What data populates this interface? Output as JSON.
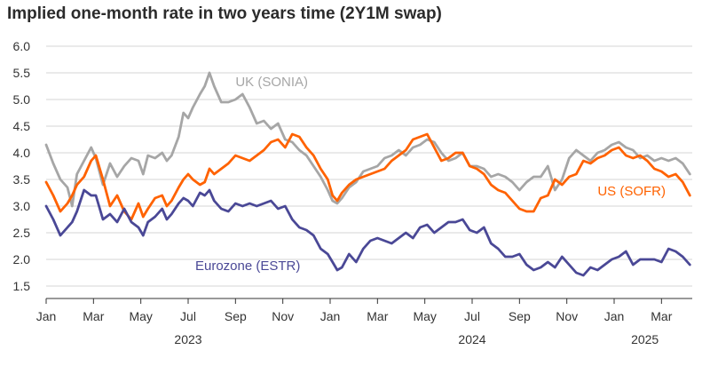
{
  "colors": {
    "uk": "#a6a6a6",
    "us": "#ff6200",
    "eu": "#4a4896",
    "grid": "#d6d6d6",
    "axis": "#333333",
    "text": "#2b2b2b"
  },
  "chart_data": {
    "type": "line",
    "title": "Implied one-month rate in two years time (2Y1M swap)",
    "xlabel": "",
    "ylabel": "",
    "ylim": [
      1.5,
      6.0
    ],
    "y_ticks": [
      "6.0",
      "5.5",
      "5.0",
      "4.5",
      "4.0",
      "3.5",
      "3.0",
      "2.5",
      "2.0",
      "1.5"
    ],
    "x_tick_labels": [
      "Jan",
      "Mar",
      "May",
      "Jul",
      "Sep",
      "Nov",
      "Jan",
      "Mar",
      "May",
      "Jul",
      "Sep",
      "Nov",
      "Jan",
      "Mar"
    ],
    "x_tick_months": [
      0,
      2,
      4,
      6,
      8,
      10,
      12,
      14,
      16,
      18,
      20,
      22,
      24,
      26
    ],
    "year_labels": [
      {
        "label": "2023",
        "month": 6
      },
      {
        "label": "2024",
        "month": 18
      },
      {
        "label": "2025",
        "month": 25.3
      }
    ],
    "x_range_months": [
      0,
      27.3
    ],
    "grid": "horizontal",
    "series": [
      {
        "name": "UK (SONIA)",
        "key": "uk",
        "label_at": {
          "month": 8.0,
          "value": 5.25
        },
        "points": [
          [
            0,
            4.15
          ],
          [
            0.3,
            3.8
          ],
          [
            0.6,
            3.5
          ],
          [
            0.9,
            3.35
          ],
          [
            1.1,
            3.0
          ],
          [
            1.3,
            3.6
          ],
          [
            1.6,
            3.85
          ],
          [
            1.9,
            4.1
          ],
          [
            2.1,
            3.9
          ],
          [
            2.4,
            3.4
          ],
          [
            2.7,
            3.8
          ],
          [
            3.0,
            3.55
          ],
          [
            3.3,
            3.75
          ],
          [
            3.6,
            3.9
          ],
          [
            3.9,
            3.85
          ],
          [
            4.1,
            3.6
          ],
          [
            4.3,
            3.95
          ],
          [
            4.6,
            3.9
          ],
          [
            4.9,
            4.0
          ],
          [
            5.1,
            3.85
          ],
          [
            5.3,
            3.95
          ],
          [
            5.6,
            4.3
          ],
          [
            5.8,
            4.75
          ],
          [
            6.0,
            4.65
          ],
          [
            6.2,
            4.85
          ],
          [
            6.5,
            5.1
          ],
          [
            6.7,
            5.25
          ],
          [
            6.9,
            5.5
          ],
          [
            7.1,
            5.25
          ],
          [
            7.4,
            4.95
          ],
          [
            7.7,
            4.95
          ],
          [
            8.0,
            5.0
          ],
          [
            8.3,
            5.1
          ],
          [
            8.6,
            4.85
          ],
          [
            8.9,
            4.55
          ],
          [
            9.2,
            4.6
          ],
          [
            9.5,
            4.45
          ],
          [
            9.8,
            4.55
          ],
          [
            10.1,
            4.25
          ],
          [
            10.4,
            4.2
          ],
          [
            10.7,
            4.05
          ],
          [
            11.0,
            3.95
          ],
          [
            11.3,
            3.75
          ],
          [
            11.6,
            3.55
          ],
          [
            11.9,
            3.3
          ],
          [
            12.1,
            3.1
          ],
          [
            12.3,
            3.05
          ],
          [
            12.5,
            3.15
          ],
          [
            12.8,
            3.35
          ],
          [
            13.1,
            3.45
          ],
          [
            13.4,
            3.65
          ],
          [
            13.7,
            3.7
          ],
          [
            14.0,
            3.75
          ],
          [
            14.3,
            3.9
          ],
          [
            14.6,
            3.95
          ],
          [
            14.9,
            4.05
          ],
          [
            15.2,
            3.95
          ],
          [
            15.5,
            4.1
          ],
          [
            15.8,
            4.15
          ],
          [
            16.1,
            4.25
          ],
          [
            16.4,
            4.2
          ],
          [
            16.7,
            4.0
          ],
          [
            17.0,
            3.85
          ],
          [
            17.3,
            3.9
          ],
          [
            17.6,
            4.0
          ],
          [
            17.9,
            3.75
          ],
          [
            18.2,
            3.75
          ],
          [
            18.5,
            3.7
          ],
          [
            18.8,
            3.55
          ],
          [
            19.1,
            3.6
          ],
          [
            19.4,
            3.55
          ],
          [
            19.7,
            3.45
          ],
          [
            20.0,
            3.3
          ],
          [
            20.3,
            3.45
          ],
          [
            20.6,
            3.55
          ],
          [
            20.9,
            3.55
          ],
          [
            21.2,
            3.75
          ],
          [
            21.5,
            3.3
          ],
          [
            21.8,
            3.5
          ],
          [
            22.1,
            3.9
          ],
          [
            22.4,
            4.05
          ],
          [
            22.7,
            3.95
          ],
          [
            23.0,
            3.85
          ],
          [
            23.3,
            4.0
          ],
          [
            23.6,
            4.05
          ],
          [
            23.9,
            4.15
          ],
          [
            24.2,
            4.2
          ],
          [
            24.5,
            4.1
          ],
          [
            24.8,
            4.05
          ],
          [
            25.1,
            3.9
          ],
          [
            25.4,
            3.95
          ],
          [
            25.7,
            3.85
          ],
          [
            26.0,
            3.9
          ],
          [
            26.3,
            3.85
          ],
          [
            26.6,
            3.9
          ],
          [
            26.9,
            3.8
          ],
          [
            27.2,
            3.6
          ]
        ]
      },
      {
        "name": "US (SOFR)",
        "key": "us",
        "label_at": {
          "month": 23.3,
          "value": 3.2
        },
        "points": [
          [
            0,
            3.45
          ],
          [
            0.3,
            3.2
          ],
          [
            0.6,
            2.9
          ],
          [
            0.9,
            3.05
          ],
          [
            1.1,
            3.2
          ],
          [
            1.3,
            3.4
          ],
          [
            1.6,
            3.55
          ],
          [
            1.9,
            3.85
          ],
          [
            2.1,
            3.95
          ],
          [
            2.4,
            3.5
          ],
          [
            2.7,
            3.0
          ],
          [
            3.0,
            3.2
          ],
          [
            3.3,
            2.9
          ],
          [
            3.6,
            2.75
          ],
          [
            3.9,
            3.05
          ],
          [
            4.1,
            2.8
          ],
          [
            4.3,
            2.95
          ],
          [
            4.6,
            3.15
          ],
          [
            4.9,
            3.2
          ],
          [
            5.1,
            3.0
          ],
          [
            5.3,
            3.1
          ],
          [
            5.6,
            3.35
          ],
          [
            5.8,
            3.5
          ],
          [
            6.0,
            3.6
          ],
          [
            6.2,
            3.5
          ],
          [
            6.5,
            3.4
          ],
          [
            6.7,
            3.45
          ],
          [
            6.9,
            3.7
          ],
          [
            7.1,
            3.6
          ],
          [
            7.4,
            3.7
          ],
          [
            7.7,
            3.8
          ],
          [
            8.0,
            3.95
          ],
          [
            8.3,
            3.9
          ],
          [
            8.6,
            3.85
          ],
          [
            8.9,
            3.95
          ],
          [
            9.2,
            4.05
          ],
          [
            9.5,
            4.2
          ],
          [
            9.8,
            4.25
          ],
          [
            10.1,
            4.1
          ],
          [
            10.4,
            4.35
          ],
          [
            10.7,
            4.3
          ],
          [
            11.0,
            4.1
          ],
          [
            11.3,
            3.95
          ],
          [
            11.6,
            3.7
          ],
          [
            11.9,
            3.5
          ],
          [
            12.1,
            3.2
          ],
          [
            12.3,
            3.1
          ],
          [
            12.5,
            3.25
          ],
          [
            12.8,
            3.4
          ],
          [
            13.1,
            3.5
          ],
          [
            13.4,
            3.55
          ],
          [
            13.7,
            3.6
          ],
          [
            14.0,
            3.65
          ],
          [
            14.3,
            3.7
          ],
          [
            14.6,
            3.85
          ],
          [
            14.9,
            3.95
          ],
          [
            15.2,
            4.05
          ],
          [
            15.5,
            4.25
          ],
          [
            15.8,
            4.3
          ],
          [
            16.1,
            4.35
          ],
          [
            16.4,
            4.1
          ],
          [
            16.7,
            3.85
          ],
          [
            17.0,
            3.9
          ],
          [
            17.3,
            4.0
          ],
          [
            17.6,
            4.0
          ],
          [
            17.9,
            3.75
          ],
          [
            18.2,
            3.7
          ],
          [
            18.5,
            3.6
          ],
          [
            18.8,
            3.4
          ],
          [
            19.1,
            3.3
          ],
          [
            19.4,
            3.25
          ],
          [
            19.7,
            3.1
          ],
          [
            20.0,
            2.95
          ],
          [
            20.3,
            2.9
          ],
          [
            20.6,
            2.9
          ],
          [
            20.9,
            3.15
          ],
          [
            21.2,
            3.2
          ],
          [
            21.5,
            3.5
          ],
          [
            21.8,
            3.4
          ],
          [
            22.1,
            3.55
          ],
          [
            22.4,
            3.6
          ],
          [
            22.7,
            3.85
          ],
          [
            23.0,
            3.8
          ],
          [
            23.3,
            3.9
          ],
          [
            23.6,
            3.95
          ],
          [
            23.9,
            4.05
          ],
          [
            24.2,
            4.1
          ],
          [
            24.5,
            3.95
          ],
          [
            24.8,
            3.9
          ],
          [
            25.1,
            3.95
          ],
          [
            25.4,
            3.85
          ],
          [
            25.7,
            3.7
          ],
          [
            26.0,
            3.65
          ],
          [
            26.3,
            3.55
          ],
          [
            26.6,
            3.6
          ],
          [
            26.9,
            3.45
          ],
          [
            27.2,
            3.2
          ]
        ]
      },
      {
        "name": "Eurozone (ESTR)",
        "key": "eu",
        "label_at": {
          "month": 6.3,
          "value": 1.8
        },
        "points": [
          [
            0,
            3.0
          ],
          [
            0.3,
            2.75
          ],
          [
            0.6,
            2.45
          ],
          [
            0.9,
            2.6
          ],
          [
            1.1,
            2.7
          ],
          [
            1.3,
            2.9
          ],
          [
            1.6,
            3.3
          ],
          [
            1.9,
            3.2
          ],
          [
            2.1,
            3.2
          ],
          [
            2.4,
            2.75
          ],
          [
            2.7,
            2.85
          ],
          [
            3.0,
            2.7
          ],
          [
            3.3,
            2.95
          ],
          [
            3.6,
            2.7
          ],
          [
            3.9,
            2.6
          ],
          [
            4.1,
            2.45
          ],
          [
            4.3,
            2.7
          ],
          [
            4.6,
            2.8
          ],
          [
            4.9,
            2.95
          ],
          [
            5.1,
            2.75
          ],
          [
            5.3,
            2.85
          ],
          [
            5.6,
            3.05
          ],
          [
            5.8,
            3.15
          ],
          [
            6.0,
            3.1
          ],
          [
            6.2,
            3.0
          ],
          [
            6.5,
            3.25
          ],
          [
            6.7,
            3.2
          ],
          [
            6.9,
            3.3
          ],
          [
            7.1,
            3.1
          ],
          [
            7.4,
            2.95
          ],
          [
            7.7,
            2.9
          ],
          [
            8.0,
            3.05
          ],
          [
            8.3,
            3.0
          ],
          [
            8.6,
            3.05
          ],
          [
            8.9,
            3.0
          ],
          [
            9.2,
            3.05
          ],
          [
            9.5,
            3.1
          ],
          [
            9.8,
            2.95
          ],
          [
            10.1,
            3.0
          ],
          [
            10.4,
            2.75
          ],
          [
            10.7,
            2.6
          ],
          [
            11.0,
            2.55
          ],
          [
            11.3,
            2.45
          ],
          [
            11.6,
            2.2
          ],
          [
            11.9,
            2.1
          ],
          [
            12.1,
            1.95
          ],
          [
            12.3,
            1.8
          ],
          [
            12.5,
            1.85
          ],
          [
            12.8,
            2.1
          ],
          [
            13.1,
            1.95
          ],
          [
            13.4,
            2.2
          ],
          [
            13.7,
            2.35
          ],
          [
            14.0,
            2.4
          ],
          [
            14.3,
            2.35
          ],
          [
            14.6,
            2.3
          ],
          [
            14.9,
            2.4
          ],
          [
            15.2,
            2.5
          ],
          [
            15.5,
            2.4
          ],
          [
            15.8,
            2.6
          ],
          [
            16.1,
            2.65
          ],
          [
            16.4,
            2.5
          ],
          [
            16.7,
            2.6
          ],
          [
            17.0,
            2.7
          ],
          [
            17.3,
            2.7
          ],
          [
            17.6,
            2.75
          ],
          [
            17.9,
            2.55
          ],
          [
            18.2,
            2.5
          ],
          [
            18.5,
            2.6
          ],
          [
            18.8,
            2.3
          ],
          [
            19.1,
            2.2
          ],
          [
            19.4,
            2.05
          ],
          [
            19.7,
            2.05
          ],
          [
            20.0,
            2.1
          ],
          [
            20.3,
            1.9
          ],
          [
            20.6,
            1.8
          ],
          [
            20.9,
            1.85
          ],
          [
            21.2,
            1.95
          ],
          [
            21.5,
            1.85
          ],
          [
            21.8,
            2.05
          ],
          [
            22.1,
            1.9
          ],
          [
            22.4,
            1.75
          ],
          [
            22.7,
            1.7
          ],
          [
            23.0,
            1.85
          ],
          [
            23.3,
            1.8
          ],
          [
            23.6,
            1.9
          ],
          [
            23.9,
            2.0
          ],
          [
            24.2,
            2.05
          ],
          [
            24.5,
            2.15
          ],
          [
            24.8,
            1.9
          ],
          [
            25.1,
            2.0
          ],
          [
            25.4,
            2.0
          ],
          [
            25.7,
            2.0
          ],
          [
            26.0,
            1.95
          ],
          [
            26.3,
            2.2
          ],
          [
            26.6,
            2.15
          ],
          [
            26.9,
            2.05
          ],
          [
            27.2,
            1.9
          ]
        ]
      }
    ]
  }
}
